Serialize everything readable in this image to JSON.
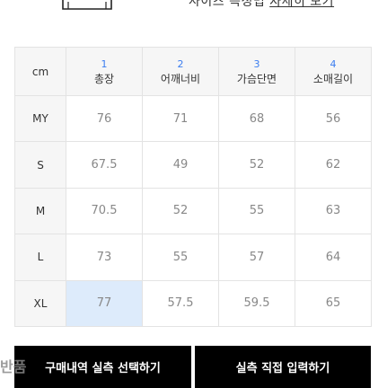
{
  "guide": {
    "text": "사이즈 측정법",
    "link": "자세히 보기"
  },
  "table": {
    "corner_label": "cm",
    "columns": [
      {
        "num": "1",
        "label": "총장"
      },
      {
        "num": "2",
        "label": "어깨너비"
      },
      {
        "num": "3",
        "label": "가슴단면"
      },
      {
        "num": "4",
        "label": "소매길이"
      }
    ],
    "rows": [
      {
        "size": "MY",
        "values": [
          "76",
          "71",
          "68",
          "56"
        ]
      },
      {
        "size": "S",
        "values": [
          "67.5",
          "49",
          "52",
          "62"
        ]
      },
      {
        "size": "M",
        "values": [
          "70.5",
          "52",
          "55",
          "63"
        ]
      },
      {
        "size": "L",
        "values": [
          "73",
          "55",
          "57",
          "64"
        ]
      },
      {
        "size": "XL",
        "values": [
          "77",
          "57.5",
          "59.5",
          "65"
        ]
      }
    ]
  },
  "buttons": {
    "purchase_select": "구매내역 실측 선택하기",
    "direct_input": "실측 직접 입력하기"
  },
  "overlay_text": "반품"
}
